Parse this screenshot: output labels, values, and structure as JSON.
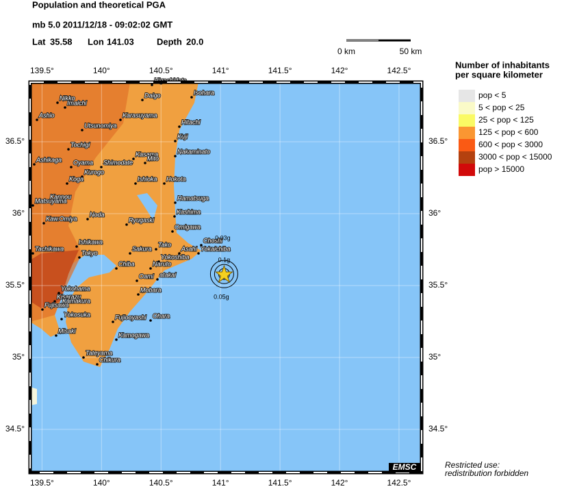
{
  "header": {
    "title": "Population and theoretical PGA",
    "event": "mb 5.0  2011/12/18 - 09:02:02 GMT",
    "lat_label": "Lat",
    "lat": 35.58,
    "lon_label": "Lon",
    "lon": 141.03,
    "depth_label": "Depth",
    "depth": "20.0"
  },
  "scale_bar": {
    "start": "0 km",
    "end": "50 km"
  },
  "map": {
    "xlim": [
      139.4,
      142.69
    ],
    "ylim": [
      34.2,
      36.914
    ],
    "xticks": [
      {
        "value": 139.5,
        "label": "139.5°"
      },
      {
        "value": 140,
        "label": "140°"
      },
      {
        "value": 140.5,
        "label": "140.5°"
      },
      {
        "value": 141,
        "label": "141°"
      },
      {
        "value": 141.5,
        "label": "141.5°"
      },
      {
        "value": 142,
        "label": "142°"
      },
      {
        "value": 142.5,
        "label": "142.5°"
      }
    ],
    "yticks": [
      {
        "value": 34.5,
        "label": "34.5°"
      },
      {
        "value": 35,
        "label": "35°"
      },
      {
        "value": 35.5,
        "label": "35.5°"
      },
      {
        "value": 36,
        "label": "36°"
      },
      {
        "value": 36.5,
        "label": "36.5°"
      }
    ],
    "pga_labels": [
      "0.03g",
      "0.1g",
      "0.05g"
    ],
    "cities": [
      "Higashidate",
      "Daigo",
      "Isohara",
      "Nikko",
      "Imaichi",
      "Ashio",
      "Karasuyama",
      "Hitachi",
      "Utsunomiya",
      "Kuji",
      "Tochigi",
      "Ashikaga",
      "Kasama",
      "Nakaminato",
      "Oyama",
      "Shimodate",
      "Mito",
      "Kurogo",
      "Koga",
      "Ishioka",
      "Hokota",
      "Hamatsuga",
      "Kannou",
      "Matsuyama",
      "Kashima",
      "Noda",
      "Kaw.Omiya",
      "Ryugaski",
      "Omigawa",
      "Ishikawa",
      "Tachikawa",
      "Tokyo",
      "Sakura",
      "Tako",
      "Asahi",
      "Choshi",
      "Yokaichiba",
      "Yokoshiba",
      "Chiba",
      "Naruto",
      "Oami",
      "atakai",
      "Mobara",
      "Yokohama",
      "Kisarazu",
      "Kamakura",
      "Fujisawa",
      "Yokosuka",
      "Fujiooyashi",
      "Ohara",
      "Misaki",
      "Kamogawa",
      "Tateyama",
      "Chikura"
    ],
    "logo": "EMSC"
  },
  "legend": {
    "title": [
      "Number of inhabitants",
      "per square kilometer"
    ],
    "classes": [
      {
        "label": "pop < 5",
        "color": "#e6e6e6"
      },
      {
        "label": "5 < pop < 25",
        "color": "#fafac8"
      },
      {
        "label": "25 < pop < 125",
        "color": "#fafa64"
      },
      {
        "label": "125 < pop < 600",
        "color": "#fa9632"
      },
      {
        "label": "600 < pop < 3000",
        "color": "#fa5a14"
      },
      {
        "label": "3000 < pop < 15000",
        "color": "#b4410f"
      },
      {
        "label": "pop > 15000",
        "color": "#d20a0a"
      }
    ]
  },
  "footer": [
    "Restricted use:",
    "redistribution forbidden"
  ]
}
